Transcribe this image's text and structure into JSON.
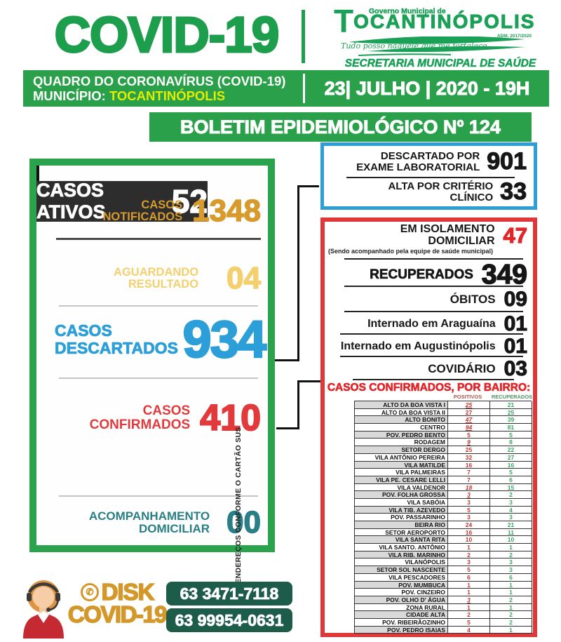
{
  "header": {
    "title": "COVID-19",
    "logo": {
      "gov": "Governo Municipal de",
      "name_initial": "T",
      "name_rest": "OCANTINÓPOLIS",
      "adm": "ADM. 2017/2020",
      "motto": "Tudo posso naquele que me fortalece",
      "secretaria": "SECRETARIA MUNICIPAL DE SAÚDE"
    },
    "banner1": {
      "line1": "QUADRO DO CORONAVÍRUS (COVID-19)",
      "line2_prefix": "MUNICÍPIO: ",
      "city": "TOCANTINÓPOLIS",
      "date": "23| JULHO | 2020 - 19H"
    },
    "banner2": "BOLETIM EPIDEMIOLÓGICO Nº 124"
  },
  "left_panel": {
    "notificados": {
      "label1": "CASOS",
      "label2": "NOTIFICADOS",
      "value": "1348"
    },
    "aguardando": {
      "label1": "AGUARDANDO",
      "label2": "RESULTADO",
      "value": "04"
    },
    "descartados": {
      "label1": "CASOS",
      "label2": "DESCARTADOS",
      "value": "934"
    },
    "confirmados": {
      "label1": "CASOS",
      "label2": "CONFIRMADOS",
      "value": "410"
    },
    "ativos": {
      "label": "CASOS ATIVOS",
      "value": "52"
    },
    "acompanhamento": {
      "label1": "ACOMPANHAMENTO",
      "label2": "DOMICILIAR",
      "value": "00"
    }
  },
  "blue_box": {
    "exame": {
      "label1": "DESCARTADO POR",
      "label2": "EXAME LABORATORIAL",
      "value": "901"
    },
    "alta": {
      "label1": "ALTA POR CRITÉRIO",
      "label2": "CLÍNICO",
      "value": "33"
    }
  },
  "red_box": {
    "isolamento": {
      "label1": "EM ISOLAMENTO",
      "label2": "DOMICILIAR",
      "value": "47",
      "note": "(Sendo acompanhado pela equipe de saúde municipal)"
    },
    "recuperados": {
      "label": "RECUPERADOS",
      "value": "349"
    },
    "obitos": {
      "label": "ÓBITOS",
      "value": "09"
    },
    "araguaina": {
      "label": "Internado em Araguaína",
      "value": "01"
    },
    "augustinopolis": {
      "label": "Internado em Augustinópolis",
      "value": "01"
    },
    "covidario": {
      "label": "COVIDÁRIO",
      "value": "03"
    }
  },
  "bairros": {
    "title": "CASOS CONFIRMADOS, POR BAIRRO:",
    "col_positivos": "POSITIVOS",
    "col_recuperados": "RECUPERADOS",
    "side_note": "ENDEREÇOS CONFORME O CARTÃO SUS",
    "rows": [
      {
        "name": "ALTO DA BOA VISTA I",
        "positivos": "25",
        "recuperados": "21",
        "changed": true
      },
      {
        "name": "ALTO DA BOA VISTA II",
        "positivos": "27",
        "recuperados": "25",
        "changed": false
      },
      {
        "name": "ALTO BONITO",
        "positivos": "47",
        "recuperados": "39",
        "changed": true
      },
      {
        "name": "CENTRO",
        "positivos": "94",
        "recuperados": "81",
        "changed": true
      },
      {
        "name": "POV. PEDRO BENTO",
        "positivos": "5",
        "recuperados": "5",
        "changed": false
      },
      {
        "name": "RODAGEM",
        "positivos": "9",
        "recuperados": "8",
        "changed": true
      },
      {
        "name": "SETOR DERGO",
        "positivos": "25",
        "recuperados": "22",
        "changed": false
      },
      {
        "name": "VILA ANTÔNIO PEREIRA",
        "positivos": "32",
        "recuperados": "27",
        "changed": false
      },
      {
        "name": "VILA MATILDE",
        "positivos": "16",
        "recuperados": "16",
        "changed": false
      },
      {
        "name": "VILA PALMEIRAS",
        "positivos": "7",
        "recuperados": "5",
        "changed": false
      },
      {
        "name": "VILA PE. CESARE LELLI",
        "positivos": "7",
        "recuperados": "6",
        "changed": false
      },
      {
        "name": "VILA VALDENOR",
        "positivos": "18",
        "recuperados": "15",
        "changed": true
      },
      {
        "name": "POV. FOLHA GROSSA",
        "positivos": "3",
        "recuperados": "2",
        "changed": true
      },
      {
        "name": "VILA SABÓIA",
        "positivos": "3",
        "recuperados": "3",
        "changed": false
      },
      {
        "name": "VILA TIB. AZEVEDO",
        "positivos": "5",
        "recuperados": "4",
        "changed": false
      },
      {
        "name": "POV. PASSARINHO",
        "positivos": "3",
        "recuperados": "3",
        "changed": false
      },
      {
        "name": "BEIRA RIO",
        "positivos": "24",
        "recuperados": "21",
        "changed": false
      },
      {
        "name": "SETOR AEROPORTO",
        "positivos": "16",
        "recuperados": "11",
        "changed": false
      },
      {
        "name": "VILA SANTA RITA",
        "positivos": "10",
        "recuperados": "10",
        "changed": false
      },
      {
        "name": "VILA SANTO. ANTÔNIO",
        "positivos": "1",
        "recuperados": "1",
        "changed": false
      },
      {
        "name": "VILA RIB. MARINHO",
        "positivos": "2",
        "recuperados": "2",
        "changed": false
      },
      {
        "name": "VILANÓPOLIS",
        "positivos": "3",
        "recuperados": "3",
        "changed": false
      },
      {
        "name": "SETOR SOL NASCENTE",
        "positivos": "5",
        "recuperados": "3",
        "changed": false
      },
      {
        "name": "VILA PESCADORES",
        "positivos": "6",
        "recuperados": "6",
        "changed": false
      },
      {
        "name": "POV. MUMBUCA",
        "positivos": "1",
        "recuperados": "1",
        "changed": false
      },
      {
        "name": "POV. CINZEIRO",
        "positivos": "1",
        "recuperados": "1",
        "changed": false
      },
      {
        "name": "POV. OLHO D' ÁGUA",
        "positivos": "3",
        "recuperados": "2",
        "changed": true
      },
      {
        "name": "ZONA RURAL",
        "positivos": "1",
        "recuperados": "1",
        "changed": false
      },
      {
        "name": "CIDADE ALTA",
        "positivos": "2",
        "recuperados": "2",
        "changed": false
      },
      {
        "name": "POV. RIBEIRÃOZINHO",
        "positivos": "5",
        "recuperados": "2",
        "changed": false
      },
      {
        "name": "POV. PEDRO ISAIAS",
        "positivos": "4",
        "recuperados": "1",
        "changed": false
      }
    ]
  },
  "footer": {
    "disk_line1": "DISK",
    "disk_line2": "COVID-19",
    "phone_icon_glyph": "✆",
    "phone1": "63 3471-7118",
    "phone2": "63 99954-0631"
  },
  "icons": {
    "phone-icon": "telephone handset in gold ring",
    "headset-operator-icon": "female call-center attendant with headset"
  },
  "colors": {
    "green": "#2aa04a",
    "logo_green": "#1aa157",
    "yellow": "#e4ef00",
    "gold_dark": "#d79b2d",
    "gold_light": "#f3cf6e",
    "blue": "#2c9fd8",
    "red": "#e23a3c",
    "teal": "#2a7e86",
    "dark_box": "#2d2d2d",
    "phone_green": "#1d5c48",
    "table_positivos_red": "#c6342f",
    "table_recuperados_green": "#3ba55f"
  }
}
